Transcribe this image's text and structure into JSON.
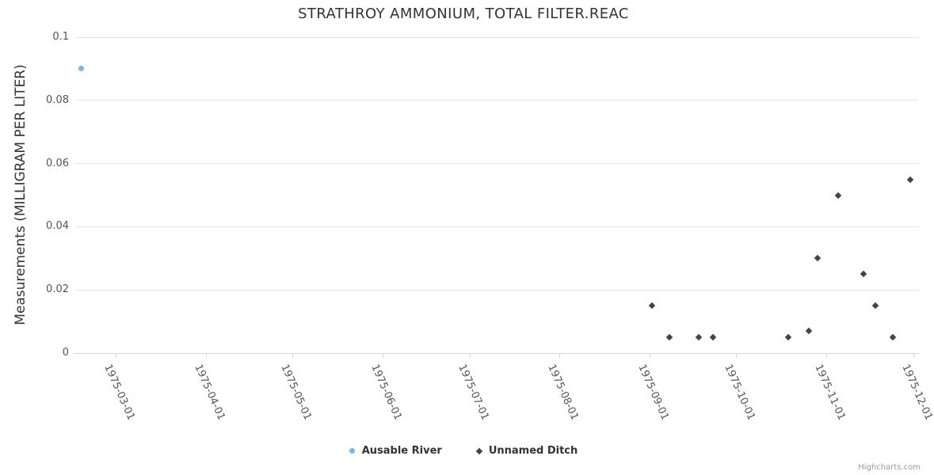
{
  "chart_data": {
    "type": "scatter",
    "title": "STRATHROY AMMONIUM, TOTAL FILTER.REAC",
    "xlabel": "",
    "ylabel": "Measurements (MILLIGRAM PER LITER)",
    "ylim": [
      0,
      0.1
    ],
    "yticks": [
      0,
      0.02,
      0.04,
      0.06,
      0.08,
      0.1
    ],
    "ytick_labels": [
      "0",
      "0.02",
      "0.04",
      "0.06",
      "0.08",
      "0.1"
    ],
    "xlim": [
      "1975-02-15",
      "1975-12-03"
    ],
    "xticks": [
      "1975-03-01",
      "1975-04-01",
      "1975-05-01",
      "1975-06-01",
      "1975-07-01",
      "1975-08-01",
      "1975-09-01",
      "1975-10-01",
      "1975-11-01",
      "1975-12-01"
    ],
    "grid": true,
    "legend_position": "bottom",
    "grid_color": "#e6e6e6",
    "axis_line_color": "#ccd6eb",
    "series": [
      {
        "name": "Ausable River",
        "color": "#7cb5ec",
        "marker": "circle",
        "points": [
          {
            "x": "1975-02-17",
            "y": 0.09
          }
        ]
      },
      {
        "name": "Unnamed Ditch",
        "color": "#434348",
        "marker": "diamond",
        "points": [
          {
            "x": "1975-09-02",
            "y": 0.015
          },
          {
            "x": "1975-09-08",
            "y": 0.005
          },
          {
            "x": "1975-09-18",
            "y": 0.005
          },
          {
            "x": "1975-09-23",
            "y": 0.005
          },
          {
            "x": "1975-10-19",
            "y": 0.005
          },
          {
            "x": "1975-10-26",
            "y": 0.007
          },
          {
            "x": "1975-10-29",
            "y": 0.03
          },
          {
            "x": "1975-11-05",
            "y": 0.05
          },
          {
            "x": "1975-11-14",
            "y": 0.025
          },
          {
            "x": "1975-11-18",
            "y": 0.015
          },
          {
            "x": "1975-11-24",
            "y": 0.005
          },
          {
            "x": "1975-11-30",
            "y": 0.055
          }
        ]
      }
    ]
  },
  "credits": {
    "label": "Highcharts.com"
  }
}
